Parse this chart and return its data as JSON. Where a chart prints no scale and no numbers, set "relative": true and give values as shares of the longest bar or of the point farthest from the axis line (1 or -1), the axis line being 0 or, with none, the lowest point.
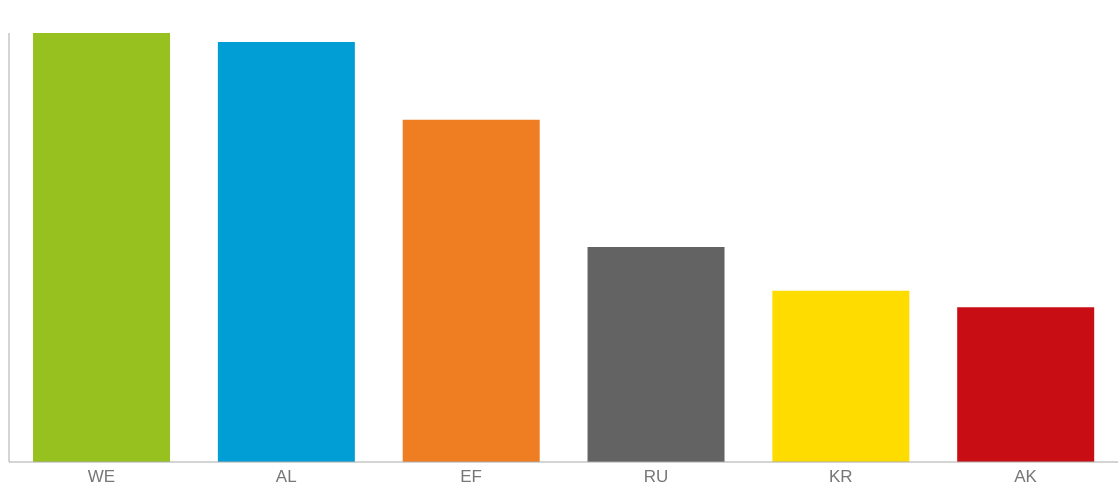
{
  "chart_data": {
    "type": "bar",
    "relative": true,
    "categories": [
      "WE",
      "AL",
      "EF",
      "RU",
      "KR",
      "AK"
    ],
    "values": [
      1,
      0.979,
      0.798,
      0.501,
      0.399,
      0.361
    ],
    "colors": [
      "#97c11f",
      "#009ed5",
      "#ef7d22",
      "#636363",
      "#ffdc00",
      "#c80e14"
    ]
  }
}
